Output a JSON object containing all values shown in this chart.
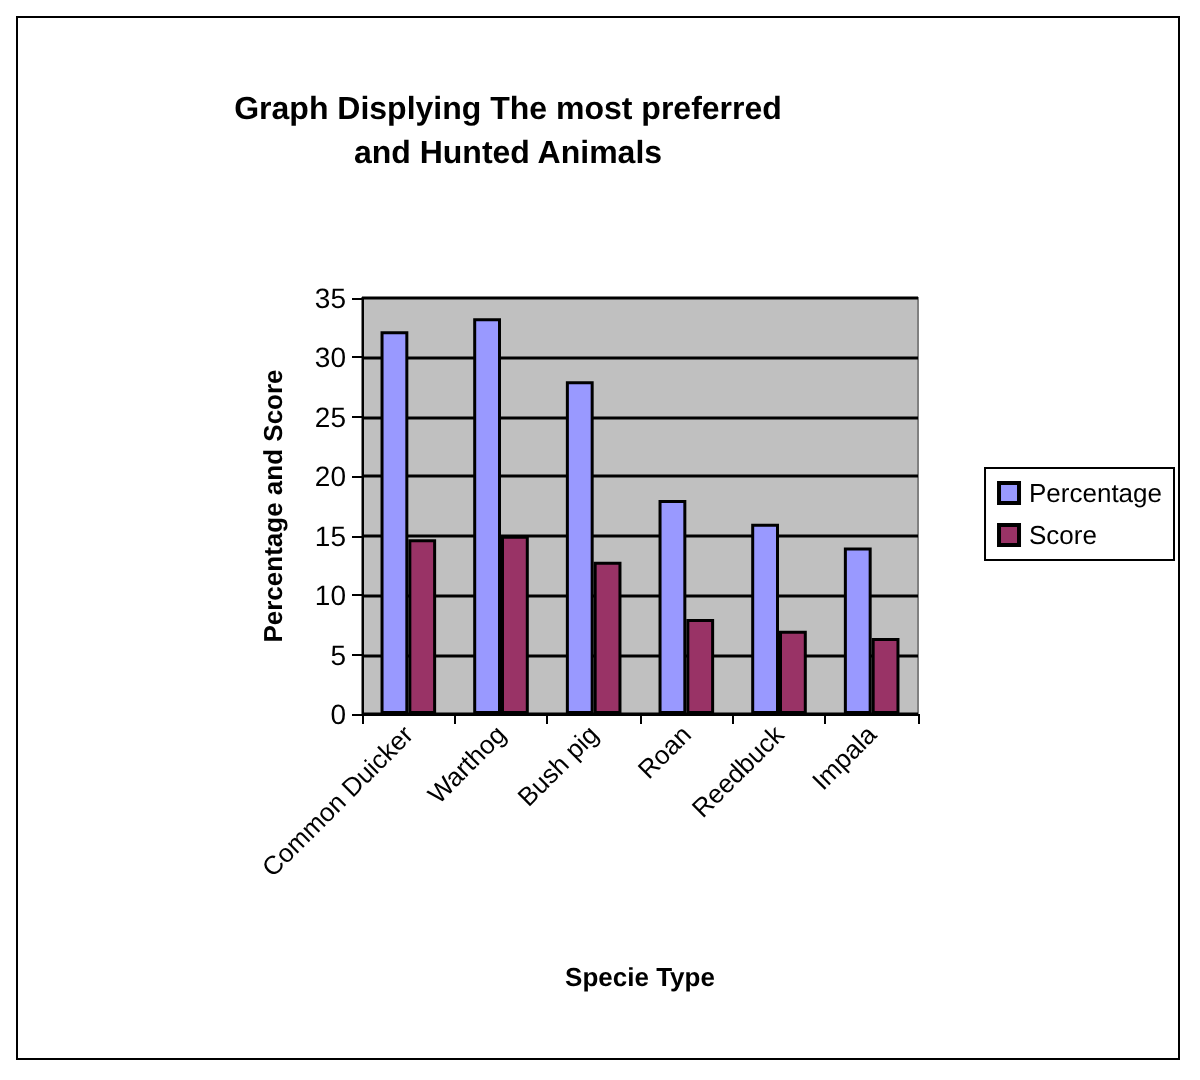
{
  "chart_data": {
    "type": "bar",
    "title": "Graph Displying The most preferred\nand Hunted Animals",
    "xlabel": "Specie Type",
    "ylabel": "Percentage and Score",
    "categories": [
      "Common Duicker",
      "Warthog",
      "Bush pig",
      "Roan",
      "Reedbuck",
      "Impala"
    ],
    "series": [
      {
        "name": "Percentage",
        "color": "#9999ff",
        "values": [
          32.2,
          33.3,
          28,
          18,
          16,
          14
        ]
      },
      {
        "name": "Score",
        "color": "#993366",
        "values": [
          14.7,
          15,
          12.8,
          8,
          7,
          6.4
        ]
      }
    ],
    "ylim": [
      0,
      35
    ],
    "yticks": [
      0,
      5,
      10,
      15,
      20,
      25,
      30,
      35
    ],
    "grid": "y",
    "legend": "right"
  }
}
